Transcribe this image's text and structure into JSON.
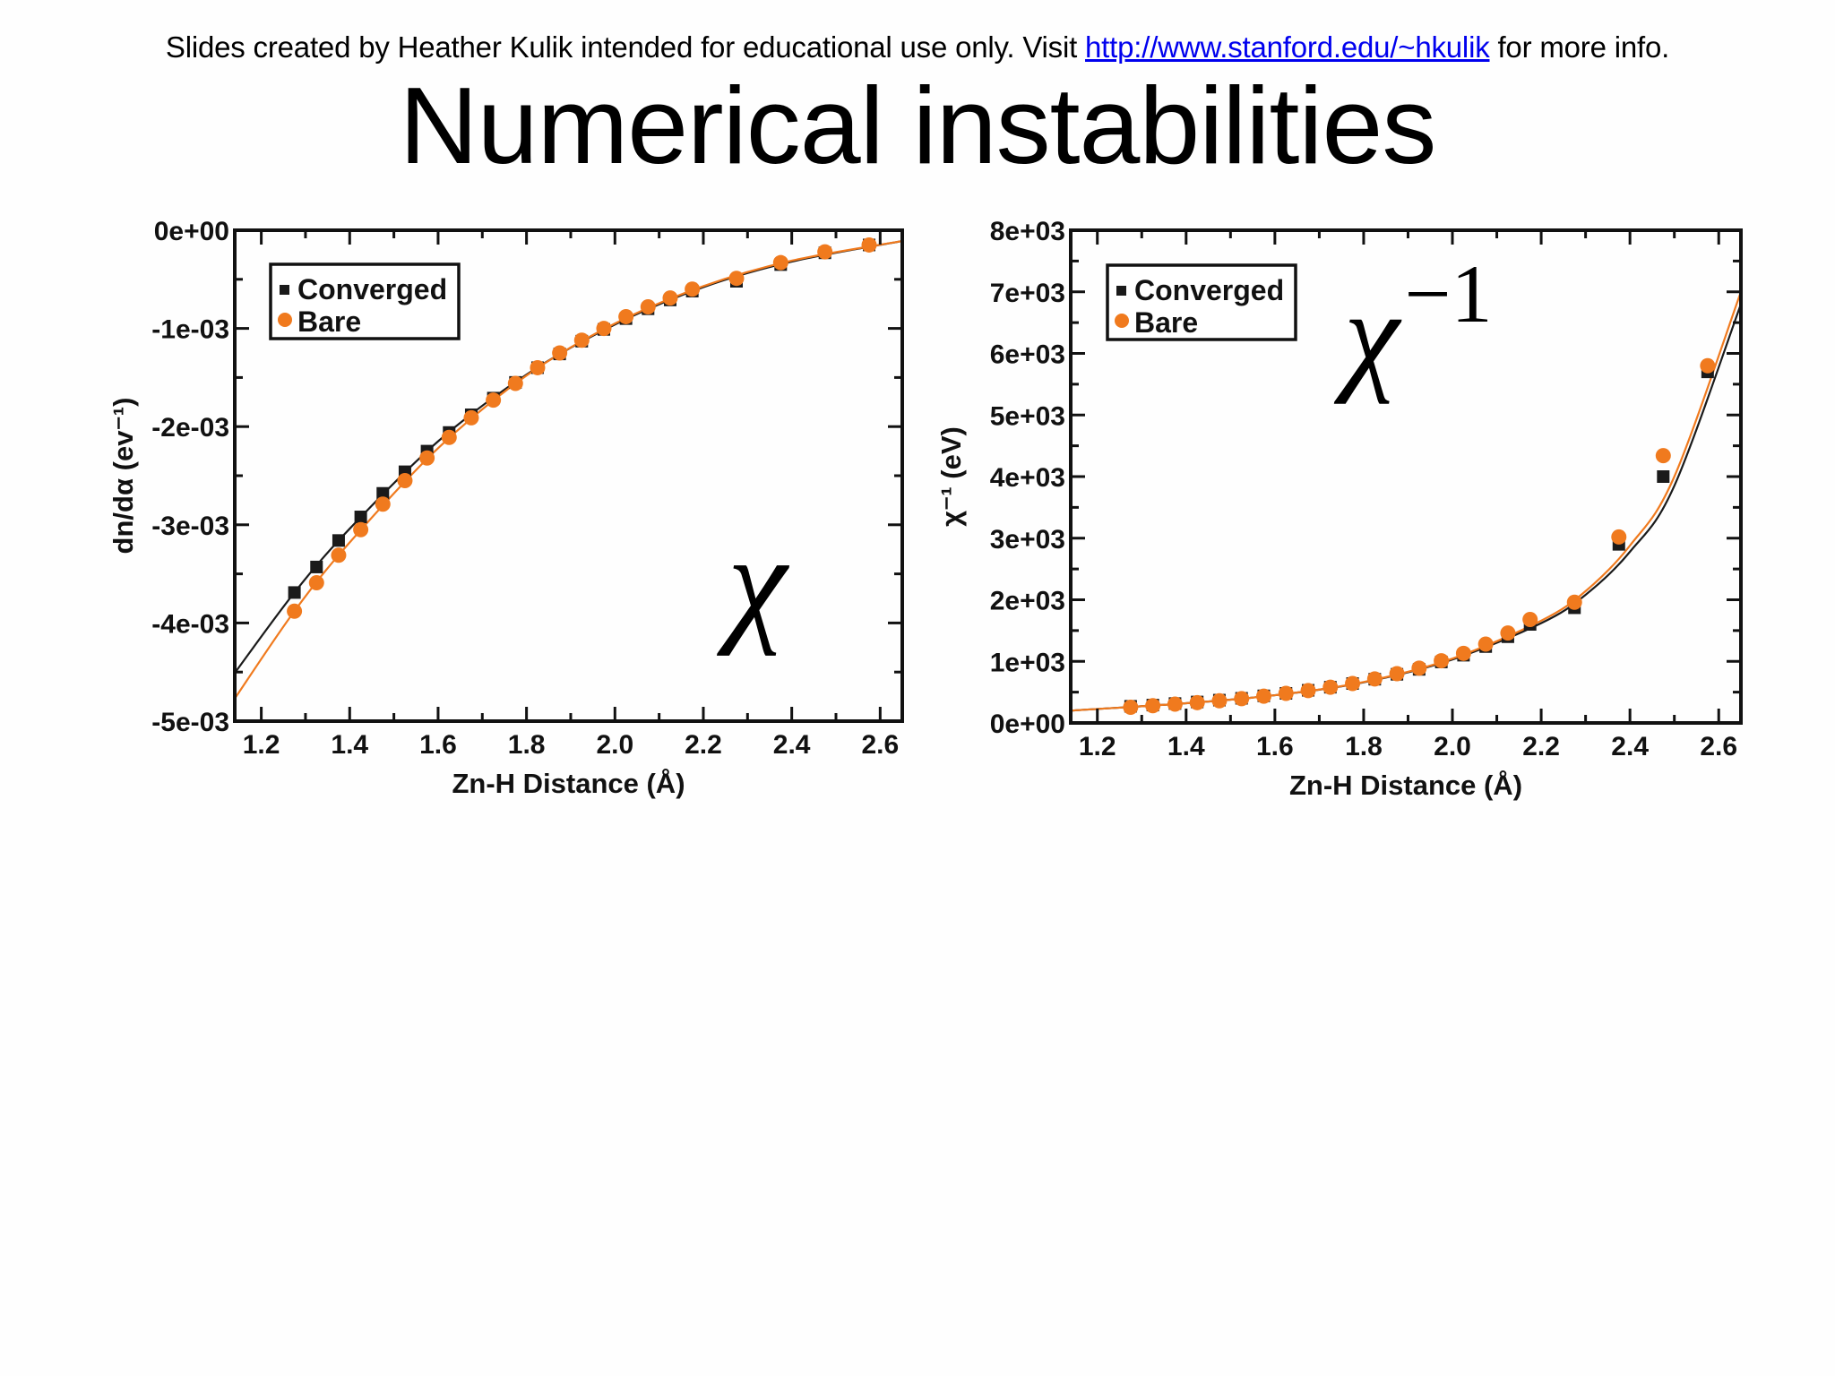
{
  "slide": {
    "credit_prefix": "Slides created by Heather Kulik intended for educational use only. Visit ",
    "credit_link": "http://www.stanford.edu/~hkulik",
    "credit_suffix": " for more info.",
    "title": "Numerical instabilities",
    "annotation_left": "χ",
    "annotation_right_base": "χ",
    "annotation_right_sup": "−1"
  },
  "colors": {
    "converged": "#1a1a1a",
    "bare": "#f07a1e",
    "link": "#0000ee"
  },
  "chart_data": [
    {
      "type": "scatter",
      "title": "",
      "xlabel": "Zn-H Distance (Å)",
      "ylabel": "dn/dα (ev⁻¹)",
      "xlim": [
        1.14,
        2.65
      ],
      "ylim": [
        -0.005,
        0.0
      ],
      "x_ticks": [
        "1.2",
        "1.4",
        "1.6",
        "1.8",
        "2.0",
        "2.2",
        "2.4",
        "2.6"
      ],
      "y_ticks": [
        "0e+00",
        "-1e-03",
        "-2e-03",
        "-3e-03",
        "-4e-03",
        "-5e-03"
      ],
      "legend": [
        "Converged",
        "Bare"
      ],
      "legend_position": "upper left",
      "grid": false,
      "series": [
        {
          "name": "Converged",
          "marker": "square",
          "x": [
            1.275,
            1.325,
            1.375,
            1.425,
            1.475,
            1.525,
            1.575,
            1.625,
            1.675,
            1.725,
            1.775,
            1.825,
            1.875,
            1.925,
            1.975,
            2.025,
            2.075,
            2.125,
            2.175,
            2.275,
            2.375,
            2.475,
            2.575
          ],
          "y": [
            -0.00369,
            -0.00343,
            -0.00316,
            -0.00292,
            -0.00268,
            -0.00246,
            -0.00225,
            -0.00206,
            -0.00188,
            -0.00171,
            -0.00155,
            -0.0014,
            -0.00126,
            -0.00113,
            -0.00101,
            -0.0009,
            -0.0008,
            -0.00071,
            -0.00062,
            -0.00052,
            -0.00035,
            -0.00023,
            -0.00015
          ]
        },
        {
          "name": "Bare",
          "marker": "circle",
          "x": [
            1.275,
            1.325,
            1.375,
            1.425,
            1.475,
            1.525,
            1.575,
            1.625,
            1.675,
            1.725,
            1.775,
            1.825,
            1.875,
            1.925,
            1.975,
            2.025,
            2.075,
            2.125,
            2.175,
            2.275,
            2.375,
            2.475,
            2.575
          ],
          "y": [
            -0.00388,
            -0.00359,
            -0.00331,
            -0.00305,
            -0.00279,
            -0.00255,
            -0.00232,
            -0.00211,
            -0.00191,
            -0.00173,
            -0.00156,
            -0.0014,
            -0.00125,
            -0.00112,
            -0.001,
            -0.00088,
            -0.00078,
            -0.00069,
            -0.0006,
            -0.00049,
            -0.00033,
            -0.00022,
            -0.00015
          ]
        }
      ],
      "fit_lines": [
        {
          "name": "Converged fit",
          "x": [
            1.14,
            1.275,
            1.4,
            1.6,
            1.8,
            2.0,
            2.2,
            2.4,
            2.65
          ],
          "y": [
            -0.00451,
            -0.00369,
            -0.00304,
            -0.00215,
            -0.00147,
            -0.00096,
            -0.00058,
            -0.00032,
            -0.00011
          ]
        },
        {
          "name": "Bare fit",
          "x": [
            1.14,
            1.275,
            1.4,
            1.6,
            1.8,
            2.0,
            2.2,
            2.4,
            2.65
          ],
          "y": [
            -0.00477,
            -0.00388,
            -0.00318,
            -0.00222,
            -0.00148,
            -0.00095,
            -0.00057,
            -0.00031,
            -0.00011
          ]
        }
      ],
      "annotation": "χ"
    },
    {
      "type": "scatter",
      "title": "",
      "xlabel": "Zn-H Distance (Å)",
      "ylabel": "χ⁻¹ (eV)",
      "xlim": [
        1.14,
        2.65
      ],
      "ylim": [
        0,
        8000
      ],
      "x_ticks": [
        "1.2",
        "1.4",
        "1.6",
        "1.8",
        "2.0",
        "2.2",
        "2.4",
        "2.6"
      ],
      "y_ticks": [
        "8e+03",
        "7e+03",
        "6e+03",
        "5e+03",
        "4e+03",
        "3e+03",
        "2e+03",
        "1e+03",
        "0e+00"
      ],
      "legend": [
        "Converged",
        "Bare"
      ],
      "legend_position": "upper left",
      "grid": false,
      "series": [
        {
          "name": "Converged",
          "marker": "square",
          "x": [
            1.275,
            1.325,
            1.375,
            1.425,
            1.475,
            1.525,
            1.575,
            1.625,
            1.675,
            1.725,
            1.775,
            1.825,
            1.875,
            1.925,
            1.975,
            2.025,
            2.075,
            2.125,
            2.175,
            2.275,
            2.375,
            2.475,
            2.575
          ],
          "y": [
            270,
            290,
            315,
            340,
            370,
            400,
            440,
            480,
            530,
            580,
            640,
            710,
            790,
            870,
            990,
            1100,
            1240,
            1400,
            1600,
            1870,
            2900,
            4000,
            5700
          ]
        },
        {
          "name": "Bare",
          "marker": "circle",
          "x": [
            1.275,
            1.325,
            1.375,
            1.425,
            1.475,
            1.525,
            1.575,
            1.625,
            1.675,
            1.725,
            1.775,
            1.825,
            1.875,
            1.925,
            1.975,
            2.025,
            2.075,
            2.125,
            2.175,
            2.275,
            2.375,
            2.475,
            2.575
          ],
          "y": [
            255,
            280,
            305,
            330,
            360,
            395,
            435,
            480,
            525,
            580,
            640,
            715,
            800,
            890,
            1010,
            1130,
            1280,
            1460,
            1680,
            1960,
            3020,
            4340,
            5800
          ]
        }
      ],
      "fit_lines": [
        {
          "name": "Converged fit",
          "x": [
            1.14,
            1.4,
            1.6,
            1.8,
            2.0,
            2.2,
            2.3,
            2.4,
            2.5,
            2.65
          ],
          "y": [
            200,
            320,
            450,
            660,
            1030,
            1620,
            2080,
            2780,
            3850,
            6800
          ]
        },
        {
          "name": "Bare fit",
          "x": [
            1.14,
            1.4,
            1.6,
            1.8,
            2.0,
            2.2,
            2.3,
            2.4,
            2.5,
            2.65
          ],
          "y": [
            200,
            320,
            450,
            665,
            1045,
            1660,
            2140,
            2880,
            4000,
            7000
          ]
        }
      ],
      "annotation": "χ⁻¹"
    }
  ]
}
